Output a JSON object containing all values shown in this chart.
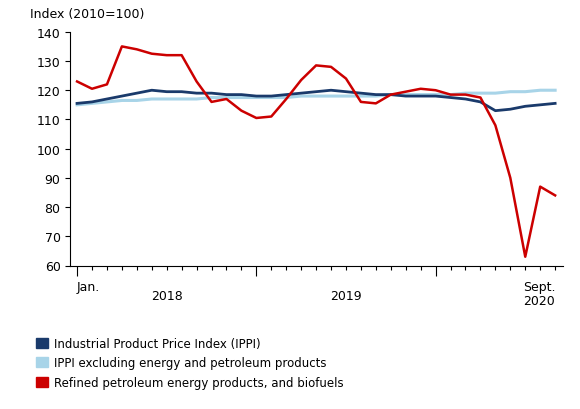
{
  "title": "Index (2010=100)",
  "ylim": [
    60,
    140
  ],
  "yticks": [
    60,
    70,
    80,
    90,
    100,
    110,
    120,
    130,
    140
  ],
  "ippi": [
    115.5,
    116.0,
    117.0,
    118.0,
    119.0,
    120.0,
    119.5,
    119.5,
    119.0,
    119.0,
    118.5,
    118.5,
    118.0,
    118.0,
    118.5,
    119.0,
    119.5,
    120.0,
    119.5,
    119.0,
    118.5,
    118.5,
    118.0,
    118.0,
    118.0,
    117.5,
    117.0,
    116.0,
    113.0,
    113.5,
    114.5,
    115.0,
    115.5
  ],
  "ippi_excl": [
    115.0,
    115.5,
    116.0,
    116.5,
    116.5,
    117.0,
    117.0,
    117.0,
    117.0,
    117.5,
    117.5,
    117.5,
    117.5,
    117.5,
    117.5,
    118.0,
    118.0,
    118.0,
    118.0,
    118.0,
    118.0,
    118.5,
    118.5,
    118.5,
    118.5,
    118.5,
    119.0,
    119.0,
    119.0,
    119.5,
    119.5,
    120.0,
    120.0
  ],
  "refined": [
    123.0,
    120.5,
    122.0,
    135.0,
    134.0,
    132.5,
    132.0,
    132.0,
    123.0,
    116.0,
    117.0,
    113.0,
    110.5,
    111.0,
    117.0,
    123.5,
    128.5,
    128.0,
    124.0,
    116.0,
    115.5,
    118.5,
    119.5,
    120.5,
    120.0,
    118.5,
    118.5,
    117.5,
    108.0,
    90.0,
    63.0,
    87.0,
    84.0
  ],
  "ippi_color": "#1a3a6b",
  "ippi_excl_color": "#a8d4e8",
  "refined_color": "#cc0000",
  "background_color": "#ffffff",
  "legend_labels": [
    "Industrial Product Price Index (IPPI)",
    "IPPI excluding energy and petroleum products",
    "Refined petroleum energy products, and biofuels"
  ]
}
